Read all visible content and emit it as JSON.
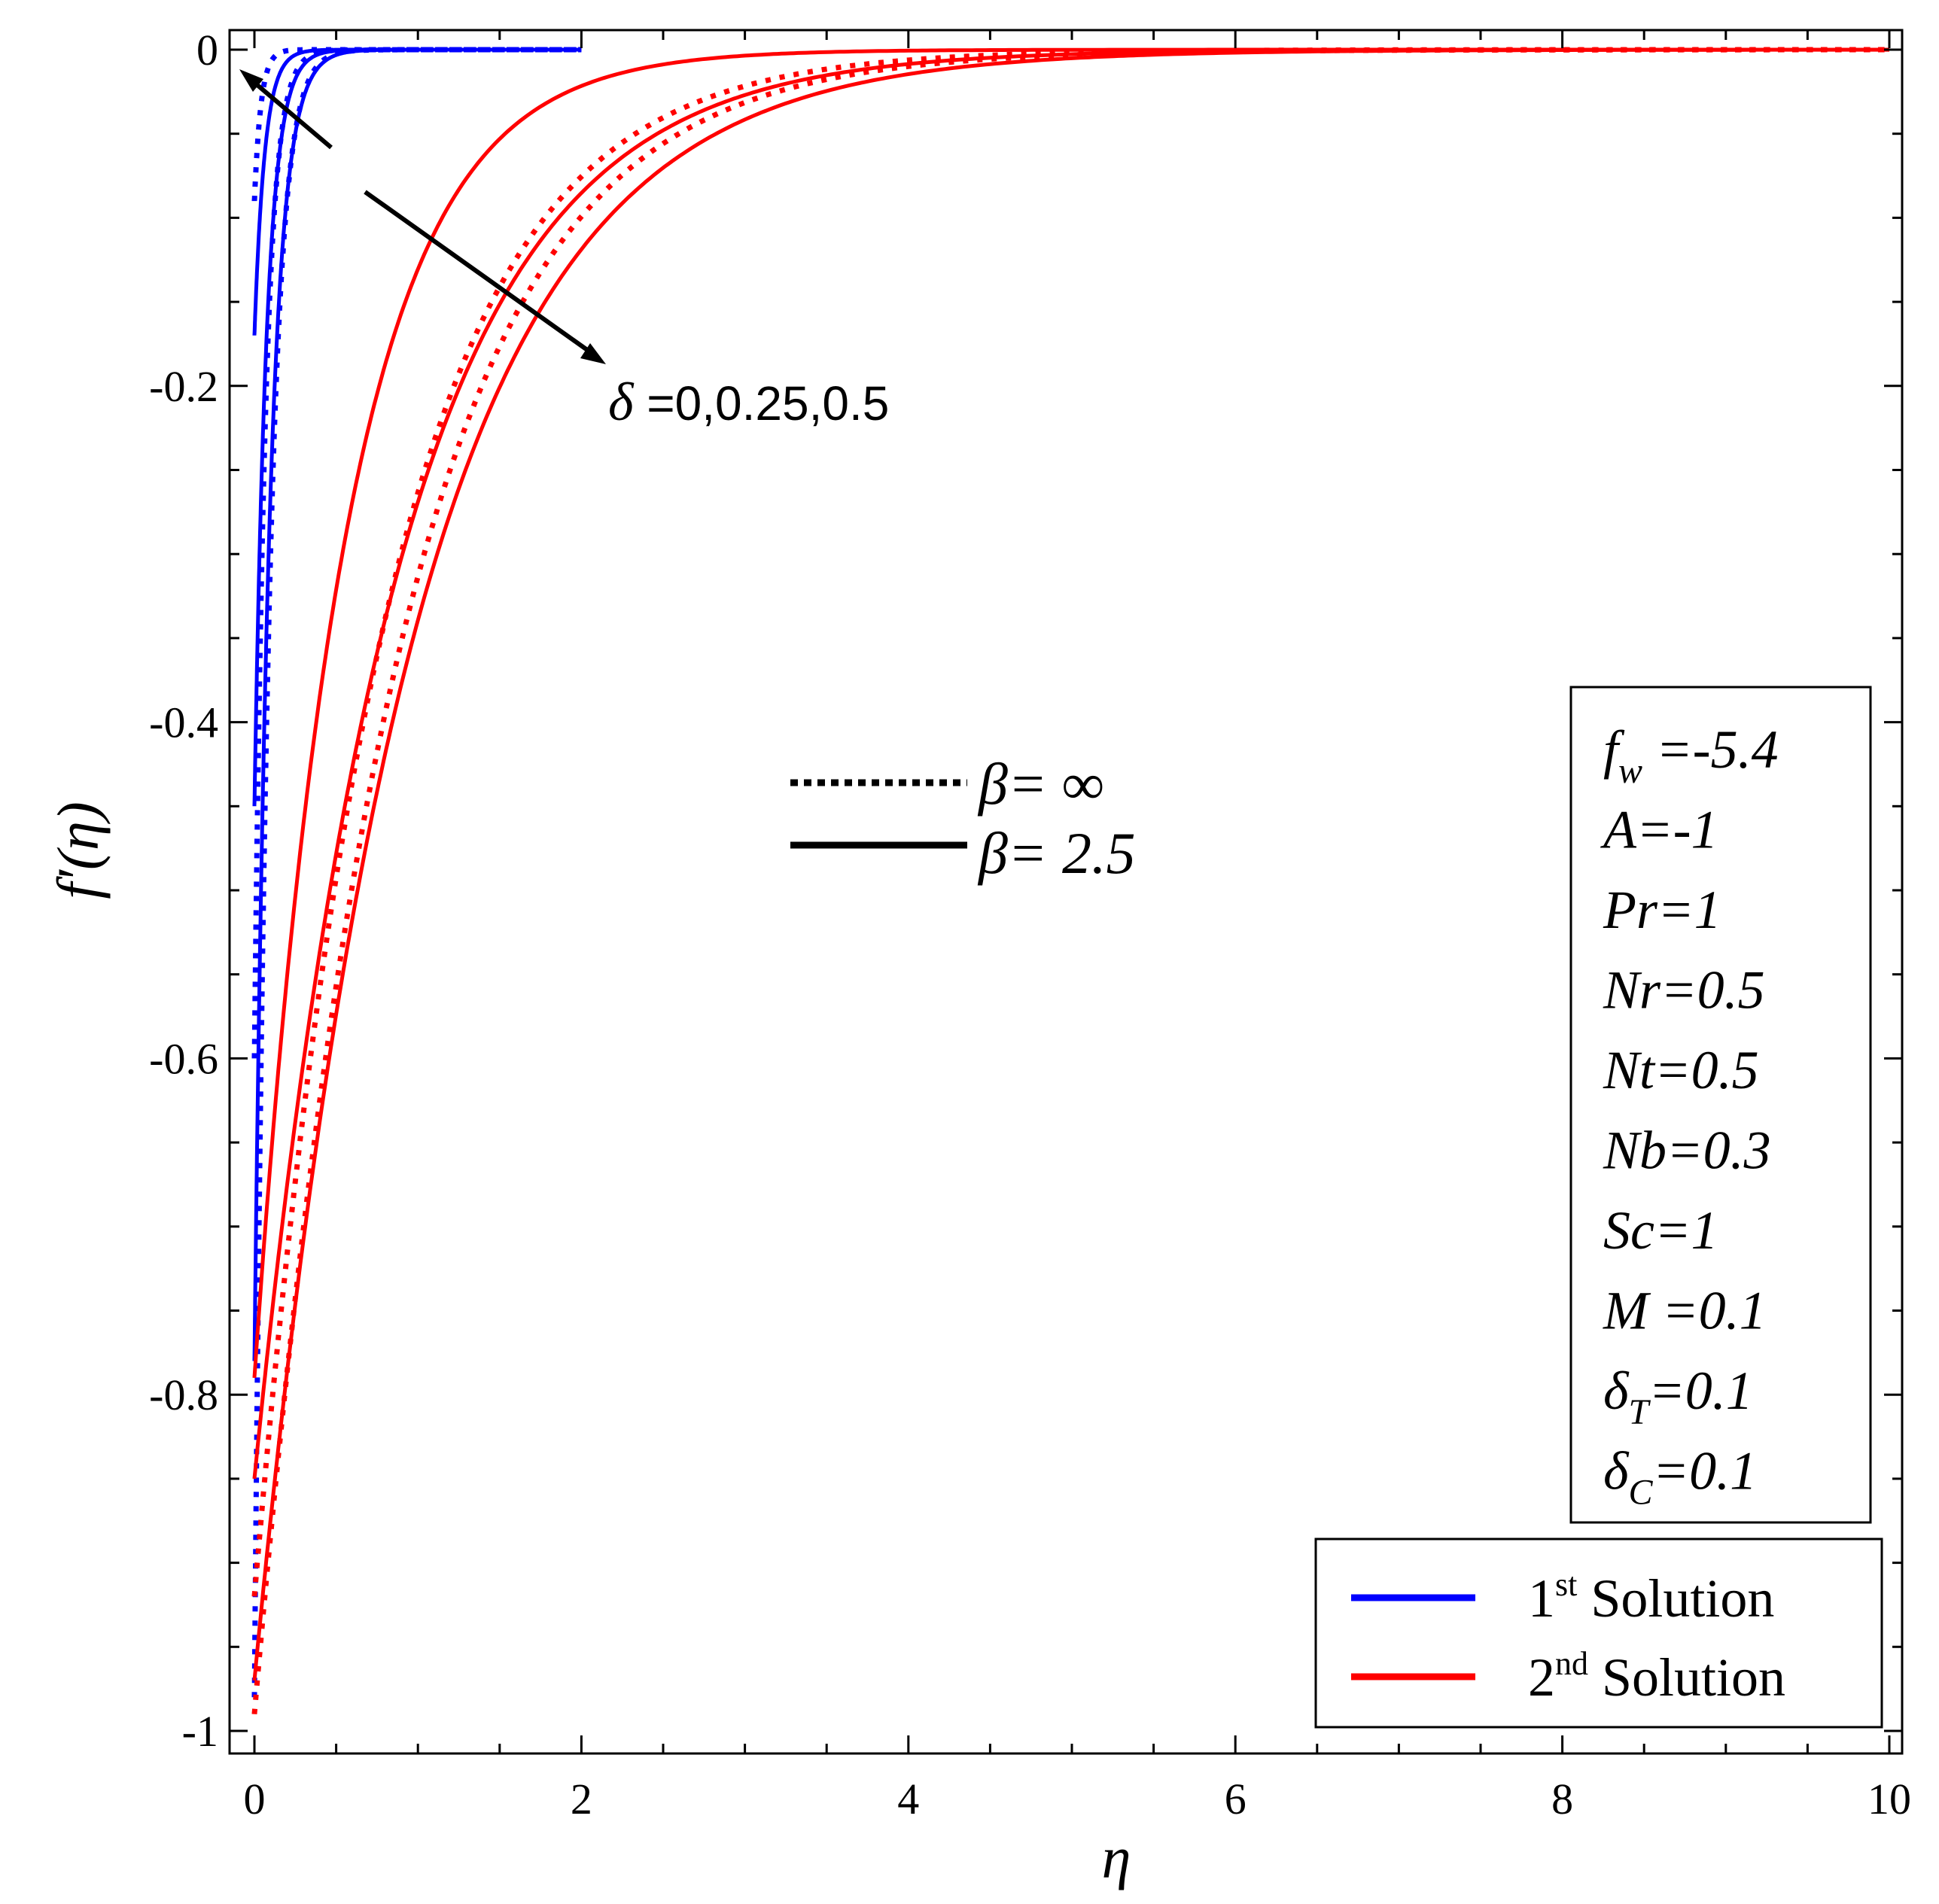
{
  "chart_data": {
    "type": "line",
    "title": "",
    "xlabel": "η",
    "ylabel": "f′(η)",
    "xlim": [
      0,
      10
    ],
    "ylim": [
      -1,
      0
    ],
    "xticks": [
      0,
      2,
      4,
      6,
      8,
      10
    ],
    "xtick_labels": [
      "0",
      "2",
      "4",
      "6",
      "8",
      "10"
    ],
    "yticks": [
      0,
      -0.2,
      -0.4,
      -0.6,
      -0.8,
      -1
    ],
    "ytick_labels": [
      "0",
      "-0.2",
      "-0.4",
      "-0.6",
      "-0.8",
      "-1"
    ],
    "grid": false,
    "colors": {
      "first": "#0000ff",
      "second": "#ff0000"
    },
    "series": [
      {
        "solution": "1st",
        "beta": "2.5",
        "style": "solid",
        "y0": -0.17,
        "decay": 16,
        "xmax": 2
      },
      {
        "solution": "1st",
        "beta": "2.5",
        "style": "solid",
        "y0": -0.45,
        "decay": 13,
        "xmax": 2
      },
      {
        "solution": "1st",
        "beta": "2.5",
        "style": "solid",
        "y0": -0.78,
        "decay": 11,
        "xmax": 2
      },
      {
        "solution": "1st",
        "beta": "∞",
        "style": "dotted",
        "y0": -0.09,
        "decay": 25,
        "xmax": 2
      },
      {
        "solution": "1st",
        "beta": "∞",
        "style": "dotted",
        "y0": -0.6,
        "decay": 15,
        "xmax": 2
      },
      {
        "solution": "1st",
        "beta": "∞",
        "style": "dotted",
        "y0": -0.98,
        "decay": 12,
        "xmax": 2
      },
      {
        "solution": "2nd",
        "beta": "2.5",
        "style": "solid",
        "y0": -0.79,
        "decay": 1.8,
        "xmax": 10
      },
      {
        "solution": "2nd",
        "beta": "2.5",
        "style": "solid",
        "y0": -0.85,
        "decay": 1.15,
        "xmax": 10
      },
      {
        "solution": "2nd",
        "beta": "2.5",
        "style": "solid",
        "y0": -0.97,
        "decay": 1.05,
        "xmax": 10
      },
      {
        "solution": "2nd",
        "beta": "∞",
        "style": "dotted",
        "y0": -0.92,
        "decay": 1.25,
        "xmax": 10
      },
      {
        "solution": "2nd",
        "beta": "∞",
        "style": "dotted",
        "y0": -0.99,
        "decay": 1.15,
        "xmax": 10
      }
    ],
    "annotation": {
      "symbol": "δ",
      "text": " =0,0.25,0.5"
    },
    "line_style_key": [
      {
        "symbol": "β",
        "text": "= ∞",
        "style": "dotted"
      },
      {
        "symbol": "β",
        "text": "= 2.5",
        "style": "solid"
      }
    ],
    "parameters": [
      {
        "base": "f",
        "sub": "w",
        "value": " =-5.4"
      },
      {
        "base": "A",
        "sub": "",
        "value": "=-1"
      },
      {
        "base": "Pr",
        "sub": "",
        "value": "=1"
      },
      {
        "base": "Nr",
        "sub": "",
        "value": "=0.5"
      },
      {
        "base": "Nt",
        "sub": "",
        "value": "=0.5"
      },
      {
        "base": "Nb",
        "sub": "",
        "value": "=0.3"
      },
      {
        "base": "Sc",
        "sub": "",
        "value": "=1"
      },
      {
        "base": "M",
        "sub": "",
        "value": " =0.1"
      },
      {
        "base": "δ",
        "sub": "T",
        "value": "=0.1"
      },
      {
        "base": "δ",
        "sub": "C",
        "value": "=0.1"
      }
    ],
    "legend": {
      "position": "bottom-right",
      "entries": [
        {
          "num": "1",
          "sup": "st",
          "text": " Solution",
          "color": "#0000ff"
        },
        {
          "num": "2",
          "sup": "nd",
          "text": " Solution",
          "color": "#ff0000"
        }
      ]
    }
  }
}
